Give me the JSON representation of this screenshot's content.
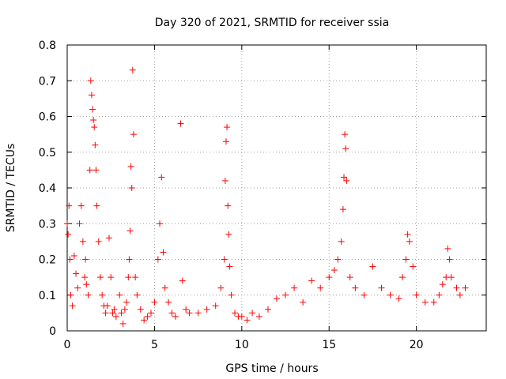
{
  "chart_data": {
    "type": "scatter",
    "title": "Day 320 of 2021, SRMTID for receiver ssia",
    "xlabel": "GPS time / hours",
    "ylabel": "SRMTID / TECUs",
    "xlim": [
      0,
      24
    ],
    "ylim": [
      0,
      0.8
    ],
    "xticks": [
      0,
      5,
      10,
      15,
      20
    ],
    "xtick_labels": [
      "0",
      "5",
      "10",
      "15",
      "20"
    ],
    "yticks": [
      0,
      0.1,
      0.2,
      0.3,
      0.4,
      0.5,
      0.6,
      0.7,
      0.8
    ],
    "ytick_labels": [
      "0",
      "0.1",
      "0.2",
      "0.3",
      "0.4",
      "0.5",
      "0.6",
      "0.7",
      "0.8"
    ],
    "grid": true,
    "marker": "+",
    "series": [
      {
        "name": "SRMTID",
        "color": "#ff0000",
        "x": [
          0.0,
          0.05,
          0.1,
          0.15,
          0.2,
          0.3,
          0.4,
          0.5,
          0.6,
          0.7,
          0.8,
          0.9,
          1.0,
          1.05,
          1.1,
          1.2,
          1.3,
          1.35,
          1.4,
          1.45,
          1.5,
          1.55,
          1.6,
          1.65,
          1.7,
          1.8,
          1.9,
          2.0,
          2.1,
          2.2,
          2.3,
          2.4,
          2.5,
          2.6,
          2.7,
          2.8,
          3.0,
          3.1,
          3.2,
          3.3,
          3.4,
          3.5,
          3.55,
          3.6,
          3.65,
          3.7,
          3.75,
          3.8,
          3.9,
          4.0,
          4.2,
          4.4,
          4.6,
          4.8,
          5.0,
          5.2,
          5.3,
          5.4,
          5.5,
          5.6,
          5.8,
          6.0,
          6.2,
          6.5,
          6.6,
          6.8,
          7.0,
          7.5,
          8.0,
          8.5,
          8.8,
          9.0,
          9.05,
          9.1,
          9.15,
          9.2,
          9.25,
          9.3,
          9.4,
          9.6,
          9.8,
          10.0,
          10.3,
          10.6,
          11.0,
          11.5,
          12.0,
          12.5,
          13.0,
          13.5,
          14.0,
          14.5,
          15.0,
          15.3,
          15.5,
          15.7,
          15.8,
          15.85,
          15.9,
          15.95,
          16.0,
          16.2,
          16.5,
          17.0,
          17.5,
          18.0,
          18.5,
          19.0,
          19.2,
          19.4,
          19.5,
          19.6,
          19.8,
          20.0,
          20.5,
          21.0,
          21.3,
          21.5,
          21.7,
          21.8,
          21.9,
          22.0,
          22.3,
          22.5,
          22.8
        ],
        "y": [
          0.3,
          0.27,
          0.35,
          0.2,
          0.1,
          0.07,
          0.21,
          0.16,
          0.12,
          0.3,
          0.35,
          0.25,
          0.15,
          0.2,
          0.13,
          0.1,
          0.45,
          0.7,
          0.66,
          0.62,
          0.59,
          0.57,
          0.52,
          0.45,
          0.35,
          0.25,
          0.15,
          0.1,
          0.07,
          0.05,
          0.07,
          0.26,
          0.15,
          0.05,
          0.06,
          0.04,
          0.1,
          0.05,
          0.02,
          0.06,
          0.08,
          0.15,
          0.2,
          0.28,
          0.46,
          0.4,
          0.73,
          0.55,
          0.15,
          0.1,
          0.06,
          0.03,
          0.04,
          0.05,
          0.08,
          0.2,
          0.3,
          0.43,
          0.22,
          0.12,
          0.08,
          0.05,
          0.04,
          0.58,
          0.14,
          0.06,
          0.05,
          0.05,
          0.06,
          0.07,
          0.12,
          0.2,
          0.42,
          0.53,
          0.57,
          0.35,
          0.27,
          0.18,
          0.1,
          0.05,
          0.04,
          0.04,
          0.03,
          0.05,
          0.04,
          0.06,
          0.09,
          0.1,
          0.12,
          0.08,
          0.14,
          0.12,
          0.15,
          0.17,
          0.2,
          0.25,
          0.34,
          0.43,
          0.55,
          0.51,
          0.42,
          0.15,
          0.12,
          0.1,
          0.18,
          0.12,
          0.1,
          0.09,
          0.15,
          0.2,
          0.27,
          0.25,
          0.18,
          0.1,
          0.08,
          0.08,
          0.1,
          0.13,
          0.15,
          0.23,
          0.2,
          0.15,
          0.12,
          0.1,
          0.12
        ]
      }
    ]
  }
}
